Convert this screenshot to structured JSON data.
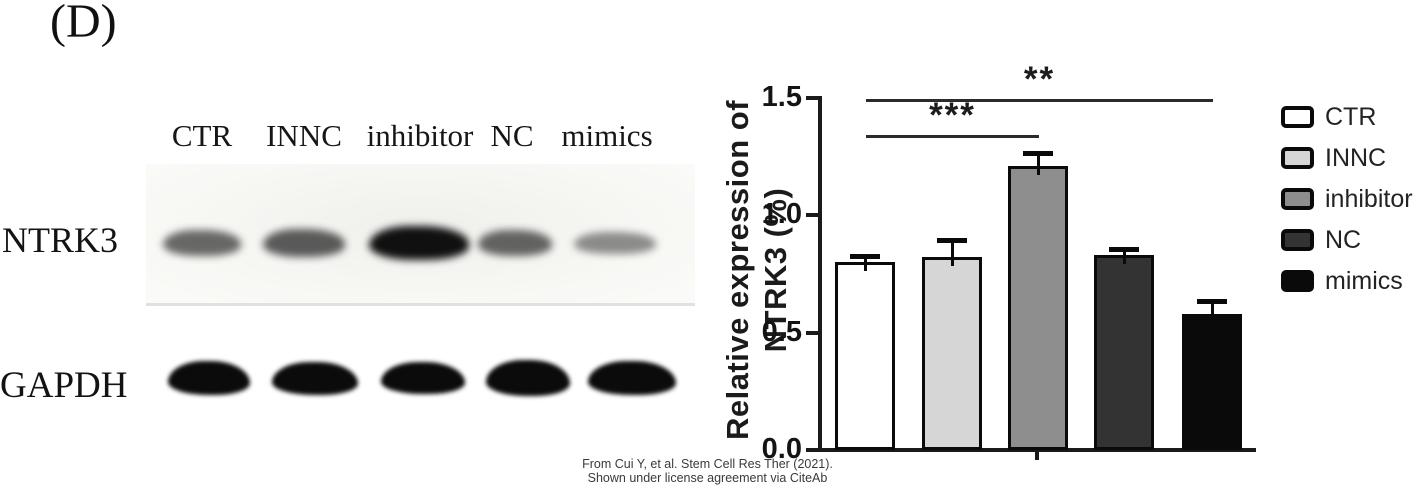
{
  "panel_label": "(D)",
  "blot": {
    "lane_labels": [
      "CTR",
      "INNC",
      "inhibitor",
      "NC",
      "mimics"
    ],
    "rows": [
      {
        "label": "NTRK3"
      },
      {
        "label": "GAPDH"
      }
    ]
  },
  "chart_data": {
    "type": "bar",
    "title": "",
    "ylabel": "Relative expression of NTRK3 (%)",
    "ylabel_line1": "Relative expression of",
    "ylabel_line2": "NTRK3 (%)",
    "categories": [
      "CTR",
      "INNC",
      "inhibitor",
      "NC",
      "mimics"
    ],
    "values": [
      0.8,
      0.82,
      1.21,
      0.83,
      0.58
    ],
    "errors": [
      0.02,
      0.07,
      0.05,
      0.02,
      0.05
    ],
    "bar_colors": [
      "#ffffff",
      "#d6d6d6",
      "#8e8e8e",
      "#333333",
      "#0a0a0a"
    ],
    "ylim": [
      0,
      1.5
    ],
    "yticks": [
      0.0,
      0.5,
      1.0,
      1.5
    ],
    "ytick_labels": [
      "0.0",
      "0.5",
      "1.0",
      "1.5"
    ],
    "grid": false,
    "legend_position": "right",
    "significance": [
      {
        "label": "***",
        "from": "CTR",
        "to": "inhibitor"
      },
      {
        "label": "**",
        "from": "CTR",
        "to": "mimics"
      }
    ]
  },
  "legend": {
    "items": [
      {
        "label": "CTR",
        "color": "#ffffff"
      },
      {
        "label": "INNC",
        "color": "#d6d6d6"
      },
      {
        "label": "inhibitor",
        "color": "#8e8e8e"
      },
      {
        "label": "NC",
        "color": "#333333"
      },
      {
        "label": "mimics",
        "color": "#0a0a0a"
      }
    ]
  },
  "attribution": {
    "line1": "From Cui Y, et al. Stem Cell Res Ther (2021).",
    "line2": "Shown under license agreement via CiteAb"
  }
}
